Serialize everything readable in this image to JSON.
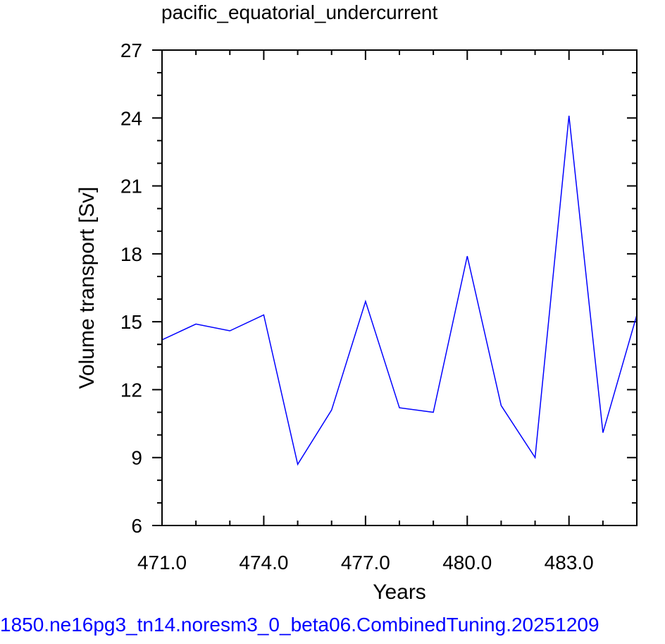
{
  "chart_data": {
    "type": "line",
    "title": "pacific_equatorial_undercurrent",
    "xlabel": "Years",
    "ylabel": "Volume transport [Sv]",
    "caption": "1850.ne16pg3_tn14.noresm3_0_beta06.CombinedTuning.20251209",
    "xlim": [
      471,
      485
    ],
    "ylim": [
      6,
      27
    ],
    "x_ticks": [
      471,
      474,
      477,
      480,
      483
    ],
    "x_tick_labels": [
      "471.0",
      "474.0",
      "477.0",
      "480.0",
      "483.0"
    ],
    "y_ticks": [
      6,
      9,
      12,
      15,
      18,
      21,
      24,
      27
    ],
    "y_tick_labels": [
      "6",
      "9",
      "12",
      "15",
      "18",
      "21",
      "24",
      "27"
    ],
    "grid": false,
    "line_color": "#0000ff",
    "series": [
      {
        "x": [
          471,
          472,
          473,
          474,
          475,
          476,
          477,
          478,
          479,
          480,
          481,
          482,
          483,
          484,
          485
        ],
        "values": [
          14.2,
          14.9,
          14.6,
          15.3,
          8.7,
          11.1,
          15.9,
          11.2,
          11.0,
          17.9,
          11.3,
          9.0,
          24.1,
          10.1,
          15.3
        ]
      }
    ]
  }
}
